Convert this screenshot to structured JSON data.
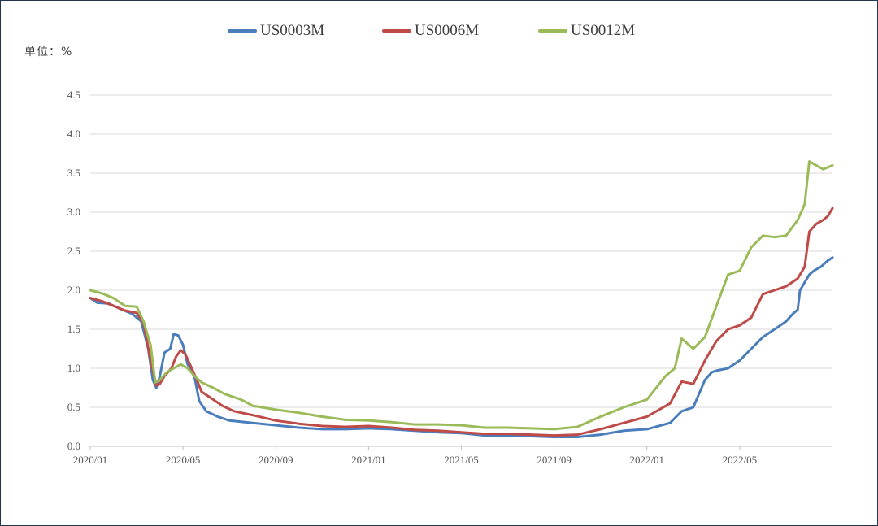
{
  "chart_data": {
    "type": "line",
    "unit_label": "单位：%",
    "ylim": [
      0,
      4.5
    ],
    "yticks": [
      "0.0",
      "0.5",
      "1.0",
      "1.5",
      "2.0",
      "2.5",
      "3.0",
      "3.5",
      "4.0",
      "4.5"
    ],
    "xticks": [
      "2020/01",
      "2020/05",
      "2020/09",
      "2021/01",
      "2021/05",
      "2021/09",
      "2022/01",
      "2022/05"
    ],
    "xrange_months": [
      0,
      30.5
    ],
    "grid": "horizontal",
    "legend_position": "top",
    "series": [
      {
        "name": "US0003M",
        "color": "#4a7ebb",
        "points": [
          [
            0,
            1.9
          ],
          [
            0.3,
            1.84
          ],
          [
            0.8,
            1.83
          ],
          [
            1.3,
            1.76
          ],
          [
            1.8,
            1.7
          ],
          [
            2.2,
            1.6
          ],
          [
            2.5,
            1.25
          ],
          [
            2.7,
            0.85
          ],
          [
            2.85,
            0.75
          ],
          [
            3.0,
            0.9
          ],
          [
            3.2,
            1.2
          ],
          [
            3.45,
            1.25
          ],
          [
            3.6,
            1.44
          ],
          [
            3.8,
            1.42
          ],
          [
            4.0,
            1.3
          ],
          [
            4.2,
            1.05
          ],
          [
            4.5,
            0.88
          ],
          [
            4.7,
            0.58
          ],
          [
            5.0,
            0.45
          ],
          [
            5.5,
            0.38
          ],
          [
            6.0,
            0.33
          ],
          [
            7.0,
            0.3
          ],
          [
            8.0,
            0.27
          ],
          [
            9.0,
            0.24
          ],
          [
            10.0,
            0.22
          ],
          [
            11.0,
            0.22
          ],
          [
            12.0,
            0.23
          ],
          [
            13.0,
            0.22
          ],
          [
            14.0,
            0.2
          ],
          [
            15.0,
            0.18
          ],
          [
            16.0,
            0.17
          ],
          [
            17.0,
            0.14
          ],
          [
            17.5,
            0.13
          ],
          [
            18.0,
            0.14
          ],
          [
            19.0,
            0.13
          ],
          [
            20.0,
            0.12
          ],
          [
            21.0,
            0.12
          ],
          [
            22.0,
            0.15
          ],
          [
            23.0,
            0.2
          ],
          [
            24.0,
            0.22
          ],
          [
            25.0,
            0.3
          ],
          [
            25.5,
            0.45
          ],
          [
            26.0,
            0.5
          ],
          [
            26.5,
            0.85
          ],
          [
            26.8,
            0.95
          ],
          [
            27.0,
            0.97
          ],
          [
            27.5,
            1.0
          ],
          [
            28.0,
            1.1
          ],
          [
            28.5,
            1.25
          ],
          [
            29.0,
            1.4
          ],
          [
            29.5,
            1.5
          ],
          [
            30.0,
            1.6
          ],
          [
            30.3,
            1.7
          ],
          [
            30.5,
            1.75
          ],
          [
            30.6,
            2.0
          ],
          [
            30.8,
            2.1
          ],
          [
            31.0,
            2.2
          ],
          [
            31.2,
            2.25
          ],
          [
            31.5,
            2.3
          ],
          [
            31.8,
            2.38
          ],
          [
            32.0,
            2.42
          ]
        ]
      },
      {
        "name": "US0006M",
        "color": "#be4b48",
        "points": [
          [
            0,
            1.9
          ],
          [
            0.5,
            1.86
          ],
          [
            1.0,
            1.8
          ],
          [
            1.5,
            1.74
          ],
          [
            2.0,
            1.71
          ],
          [
            2.3,
            1.58
          ],
          [
            2.6,
            1.1
          ],
          [
            2.85,
            0.78
          ],
          [
            3.0,
            0.8
          ],
          [
            3.2,
            0.9
          ],
          [
            3.5,
            1.0
          ],
          [
            3.7,
            1.15
          ],
          [
            3.9,
            1.23
          ],
          [
            4.1,
            1.18
          ],
          [
            4.3,
            1.05
          ],
          [
            4.6,
            0.85
          ],
          [
            4.8,
            0.7
          ],
          [
            5.2,
            0.62
          ],
          [
            5.7,
            0.52
          ],
          [
            6.2,
            0.45
          ],
          [
            7.0,
            0.4
          ],
          [
            8.0,
            0.33
          ],
          [
            9.0,
            0.29
          ],
          [
            10.0,
            0.26
          ],
          [
            11.0,
            0.25
          ],
          [
            12.0,
            0.26
          ],
          [
            13.0,
            0.24
          ],
          [
            14.0,
            0.21
          ],
          [
            15.0,
            0.2
          ],
          [
            16.0,
            0.18
          ],
          [
            17.0,
            0.16
          ],
          [
            18.0,
            0.16
          ],
          [
            19.0,
            0.15
          ],
          [
            20.0,
            0.14
          ],
          [
            21.0,
            0.15
          ],
          [
            22.0,
            0.22
          ],
          [
            23.0,
            0.3
          ],
          [
            24.0,
            0.38
          ],
          [
            25.0,
            0.55
          ],
          [
            25.5,
            0.83
          ],
          [
            26.0,
            0.8
          ],
          [
            26.5,
            1.1
          ],
          [
            27.0,
            1.35
          ],
          [
            27.5,
            1.5
          ],
          [
            28.0,
            1.55
          ],
          [
            28.5,
            1.65
          ],
          [
            29.0,
            1.95
          ],
          [
            29.5,
            2.0
          ],
          [
            30.0,
            2.05
          ],
          [
            30.5,
            2.15
          ],
          [
            30.8,
            2.3
          ],
          [
            31.0,
            2.75
          ],
          [
            31.3,
            2.85
          ],
          [
            31.6,
            2.9
          ],
          [
            31.8,
            2.95
          ],
          [
            32.0,
            3.05
          ]
        ]
      },
      {
        "name": "US0012M",
        "color": "#9bbb59",
        "points": [
          [
            0,
            2.0
          ],
          [
            0.5,
            1.96
          ],
          [
            1.0,
            1.9
          ],
          [
            1.5,
            1.8
          ],
          [
            2.0,
            1.79
          ],
          [
            2.3,
            1.6
          ],
          [
            2.6,
            1.3
          ],
          [
            2.8,
            0.82
          ],
          [
            3.0,
            0.85
          ],
          [
            3.3,
            0.95
          ],
          [
            3.6,
            1.0
          ],
          [
            3.9,
            1.05
          ],
          [
            4.2,
            1.0
          ],
          [
            4.5,
            0.9
          ],
          [
            4.8,
            0.82
          ],
          [
            5.3,
            0.75
          ],
          [
            5.8,
            0.67
          ],
          [
            6.5,
            0.6
          ],
          [
            7.0,
            0.52
          ],
          [
            8.0,
            0.47
          ],
          [
            9.0,
            0.43
          ],
          [
            10.0,
            0.38
          ],
          [
            11.0,
            0.34
          ],
          [
            12.0,
            0.33
          ],
          [
            13.0,
            0.31
          ],
          [
            14.0,
            0.28
          ],
          [
            15.0,
            0.28
          ],
          [
            16.0,
            0.27
          ],
          [
            17.0,
            0.24
          ],
          [
            18.0,
            0.24
          ],
          [
            19.0,
            0.23
          ],
          [
            20.0,
            0.22
          ],
          [
            21.0,
            0.25
          ],
          [
            22.0,
            0.38
          ],
          [
            23.0,
            0.5
          ],
          [
            24.0,
            0.6
          ],
          [
            24.8,
            0.9
          ],
          [
            25.2,
            1.0
          ],
          [
            25.5,
            1.38
          ],
          [
            26.0,
            1.25
          ],
          [
            26.5,
            1.4
          ],
          [
            27.0,
            1.8
          ],
          [
            27.5,
            2.2
          ],
          [
            28.0,
            2.25
          ],
          [
            28.5,
            2.55
          ],
          [
            29.0,
            2.7
          ],
          [
            29.5,
            2.68
          ],
          [
            30.0,
            2.7
          ],
          [
            30.5,
            2.9
          ],
          [
            30.8,
            3.1
          ],
          [
            31.0,
            3.65
          ],
          [
            31.3,
            3.6
          ],
          [
            31.6,
            3.55
          ],
          [
            32.0,
            3.6
          ]
        ]
      }
    ]
  }
}
